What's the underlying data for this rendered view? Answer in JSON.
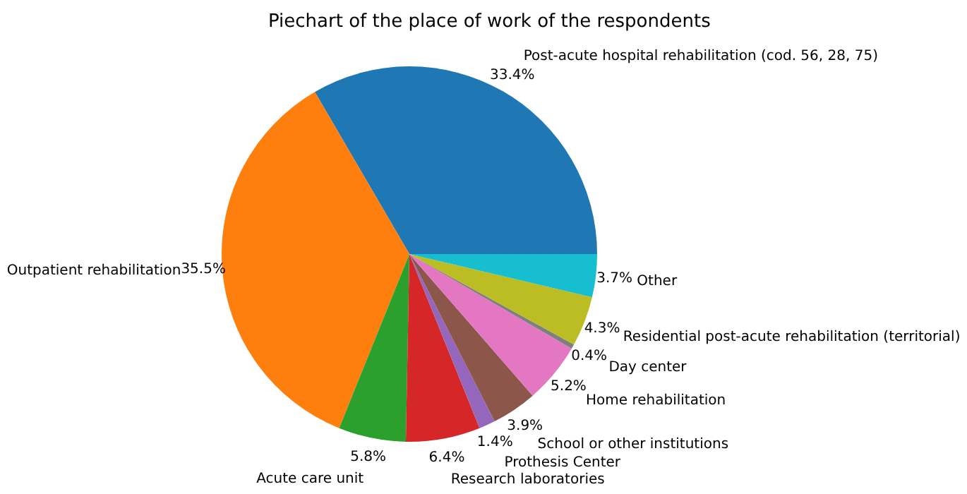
{
  "chart_data": {
    "type": "pie",
    "title": "Piechart of the place of work of the respondents",
    "categories": [
      "Post-acute hospital rehabilitation (cod. 56, 28, 75)",
      "Outpatient rehabilitation",
      "Acute care unit",
      "Research laboratories",
      "Prothesis Center",
      "School or other institutions",
      "Home rehabilitation",
      "Day center",
      "Residential post-acute rehabilitation (territorial)",
      "Other"
    ],
    "values": [
      33.4,
      35.5,
      5.8,
      6.4,
      1.4,
      3.9,
      5.2,
      0.4,
      4.3,
      3.7
    ],
    "value_labels": [
      "33.4%",
      "35.5%",
      "5.8%",
      "6.4%",
      "1.4%",
      "3.9%",
      "5.2%",
      "0.4%",
      "4.3%",
      "3.7%"
    ],
    "colors": [
      "#1f77b4",
      "#ff7f0e",
      "#2ca02c",
      "#d62728",
      "#9467bd",
      "#8c564b",
      "#e377c2",
      "#7f7f7f",
      "#bcbd22",
      "#17becf"
    ]
  }
}
